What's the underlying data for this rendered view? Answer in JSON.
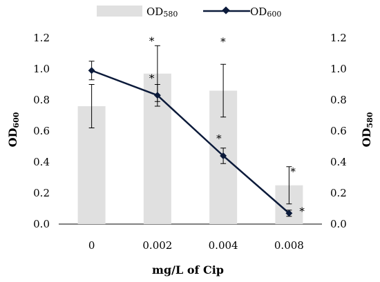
{
  "chart_data": {
    "type": "bar+line",
    "categories": [
      "0",
      "0.002",
      "0.004",
      "0.008"
    ],
    "xlabel": "mg/L of Cip",
    "ylabel_left": {
      "main": "OD",
      "sub": "600"
    },
    "ylabel_right": {
      "main": "OD",
      "sub": "580"
    },
    "ylim_left": [
      0,
      1.2
    ],
    "ylim_right": [
      0,
      1.2
    ],
    "yticks": [
      "0.0",
      "0.2",
      "0.4",
      "0.6",
      "0.8",
      "1.0",
      "1.2"
    ],
    "grid": false,
    "legend_position": "top",
    "series": [
      {
        "name": {
          "main": "OD",
          "sub": "580"
        },
        "kind": "bar",
        "axis": "right",
        "color": "#e0e0e0",
        "values": [
          0.76,
          0.97,
          0.86,
          0.25
        ],
        "error": [
          0.14,
          0.18,
          0.17,
          0.12
        ],
        "stars": [
          "",
          "*",
          "*",
          "*"
        ]
      },
      {
        "name": {
          "main": "OD",
          "sub": "600"
        },
        "kind": "line",
        "axis": "left",
        "color": "#0b1a3a",
        "values": [
          0.99,
          0.83,
          0.44,
          0.07
        ],
        "error": [
          0.06,
          0.07,
          0.05,
          0.02
        ],
        "stars": [
          "",
          "*",
          "*",
          "*"
        ]
      }
    ]
  }
}
